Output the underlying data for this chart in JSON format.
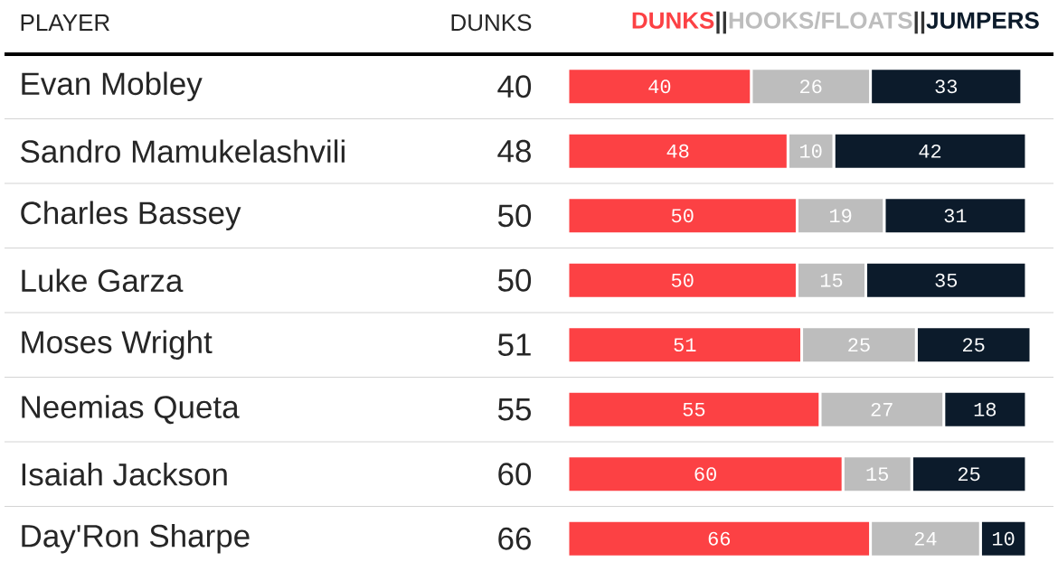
{
  "chart_data": {
    "type": "bar",
    "orientation": "horizontal",
    "stacked": true,
    "data_labels": true,
    "legend": "top right",
    "annotations": [
      "PLAYER",
      "DUNKS",
      "||",
      "40",
      "48",
      "50",
      "50",
      "51",
      "55",
      "60",
      "66"
    ],
    "categories": [
      "Evan Mobley",
      "Sandro Mamukelashvili",
      "Charles Bassey",
      "Luke Garza",
      "Moses Wright",
      "Neemias Queta",
      "Isaiah Jackson",
      "Day'Ron Sharpe"
    ],
    "series": [
      {
        "name": "DUNKS",
        "color": "#fc4144",
        "values": [
          40,
          48,
          50,
          50,
          51,
          55,
          60,
          66
        ]
      },
      {
        "name": "HOOKS/FLOATS",
        "color": "#bdbdbd",
        "values": [
          26,
          10,
          19,
          15,
          25,
          27,
          15,
          24
        ]
      },
      {
        "name": "JUMPERS",
        "color": "#0c1b2b",
        "values": [
          33,
          42,
          31,
          35,
          25,
          18,
          25,
          10
        ]
      }
    ]
  }
}
